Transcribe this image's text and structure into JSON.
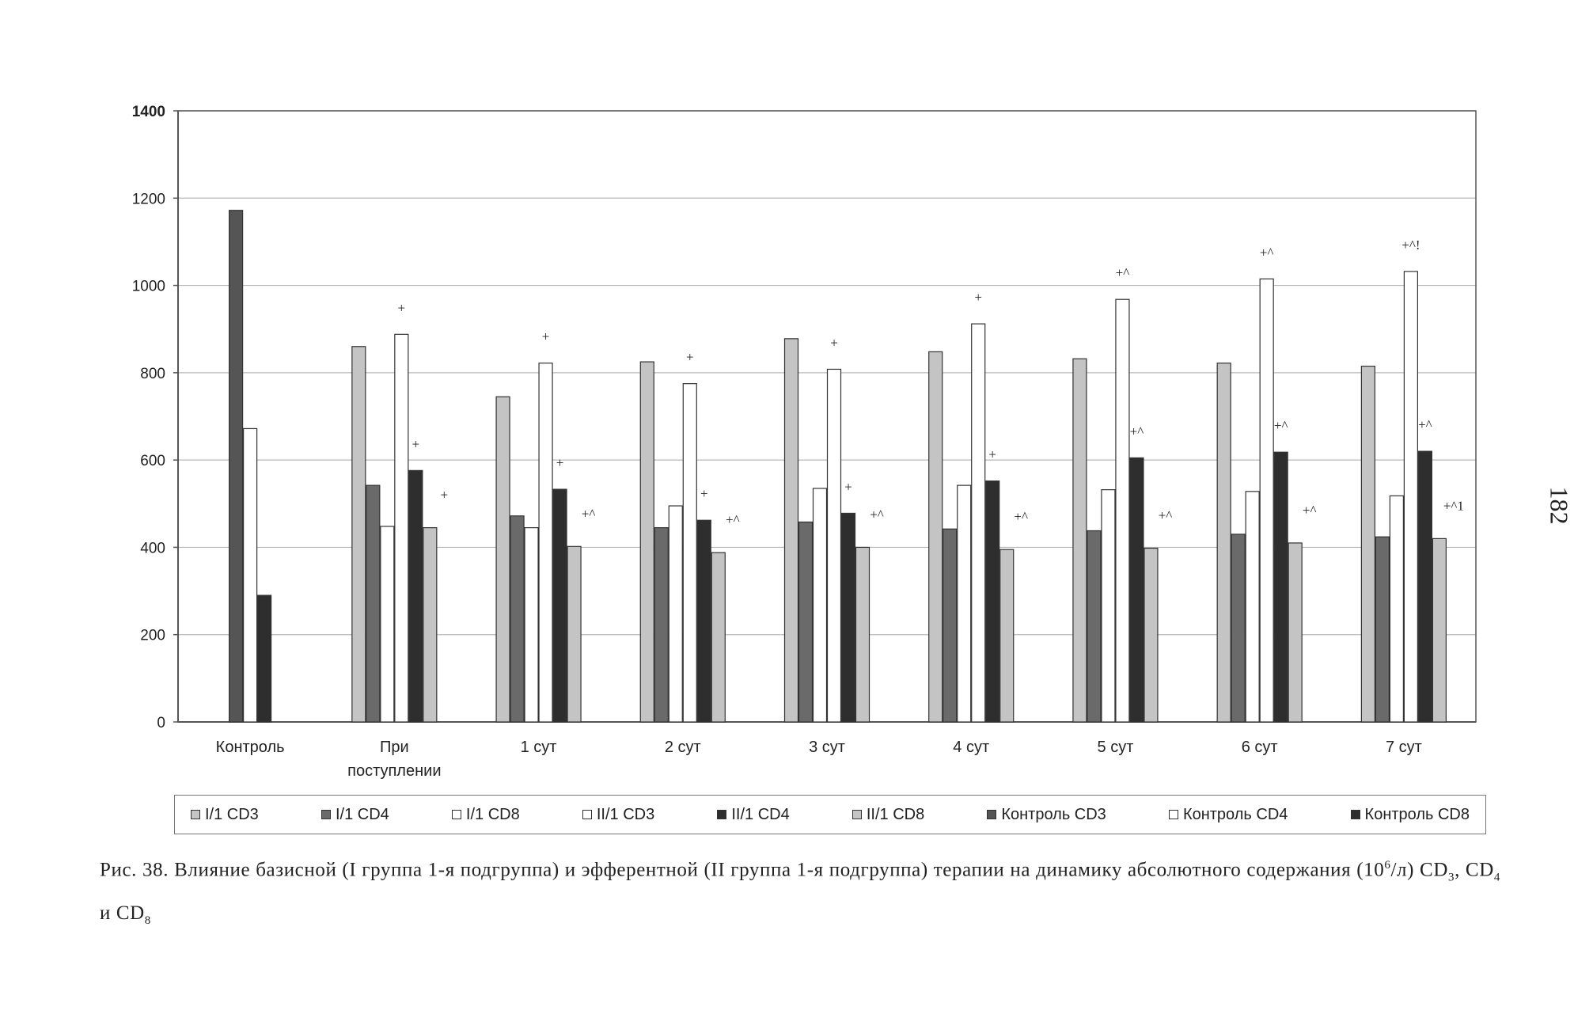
{
  "page_number": "182",
  "caption": {
    "figure_label": "Рис. 38.",
    "text": "Влияние базисной (I группа 1-я подгруппа) и эфферентной (II группа 1-я подгруппа) терапии на динамику абсолютного содержания (10",
    "superscript": "6",
    "text_after_sup": "/л) CD",
    "sub1": "3",
    "sep1": ", CD",
    "sub2": "4",
    "sep2": " и CD",
    "sub3": "8"
  },
  "colors": {
    "light_gray_bar": "#c4c4c4",
    "mid_gray_bar": "#6a6a6a",
    "white_bar": "#ffffff",
    "dark_bar": "#2e2e2e",
    "control_cd3_bar": "#555555",
    "gridline": "#b8b8b8",
    "axis": "#555555"
  },
  "chart_data": {
    "type": "bar",
    "title": "",
    "xlabel": "",
    "ylabel": "",
    "ylim": [
      0,
      1400
    ],
    "yticks": [
      0,
      200,
      400,
      600,
      800,
      1000,
      1200,
      1400
    ],
    "grid": true,
    "legend_position": "bottom",
    "categories": [
      "Контроль",
      "При поступлении",
      "1 сут",
      "2 сут",
      "3 сут",
      "4 сут",
      "5 сут",
      "6 сут",
      "7 сут"
    ],
    "category_lines": [
      [
        "Контроль"
      ],
      [
        "При",
        "поступлении"
      ],
      [
        "1 сут"
      ],
      [
        "2 сут"
      ],
      [
        "3 сут"
      ],
      [
        "4 сут"
      ],
      [
        "5 сут"
      ],
      [
        "6 сут"
      ],
      [
        "7 сут"
      ]
    ],
    "series": [
      {
        "name": "I/1 CD3",
        "color": "#c4c4c4",
        "values": [
          null,
          860,
          745,
          825,
          878,
          848,
          832,
          822,
          815
        ]
      },
      {
        "name": "I/1 CD4",
        "color": "#6a6a6a",
        "values": [
          null,
          542,
          472,
          445,
          458,
          442,
          438,
          430,
          424
        ]
      },
      {
        "name": "I/1 CD8",
        "color": "#ffffff",
        "values": [
          null,
          448,
          445,
          495,
          535,
          542,
          532,
          528,
          518
        ]
      },
      {
        "name": "II/1 CD3",
        "color": "#ffffff",
        "values": [
          null,
          888,
          822,
          775,
          808,
          912,
          968,
          1015,
          1032
        ]
      },
      {
        "name": "II/1 CD4",
        "color": "#2e2e2e",
        "values": [
          null,
          576,
          533,
          462,
          478,
          552,
          605,
          618,
          620
        ]
      },
      {
        "name": "II/1 CD8",
        "color": "#c4c4c4",
        "values": [
          null,
          445,
          402,
          388,
          400,
          395,
          398,
          410,
          420
        ]
      },
      {
        "name": "Контроль CD3",
        "color": "#555555",
        "values": [
          1172,
          null,
          null,
          null,
          null,
          null,
          null,
          null,
          null
        ]
      },
      {
        "name": "Контроль CD4",
        "color": "#ffffff",
        "values": [
          672,
          null,
          null,
          null,
          null,
          null,
          null,
          null,
          null
        ]
      },
      {
        "name": "Контроль CD8",
        "color": "#2e2e2e",
        "values": [
          290,
          null,
          null,
          null,
          null,
          null,
          null,
          null,
          null
        ]
      }
    ],
    "annotations": [
      {
        "category": "При поступлении",
        "series": "II/1 CD3",
        "text": "+"
      },
      {
        "category": "При поступлении",
        "series": "II/1 CD4",
        "text": "+"
      },
      {
        "category": "При поступлении",
        "series": "II/1 CD8",
        "text": "+"
      },
      {
        "category": "1 сут",
        "series": "II/1 CD3",
        "text": "+"
      },
      {
        "category": "1 сут",
        "series": "II/1 CD4",
        "text": "+"
      },
      {
        "category": "1 сут",
        "series": "II/1 CD8",
        "text": "+^"
      },
      {
        "category": "2 сут",
        "series": "II/1 CD3",
        "text": "+"
      },
      {
        "category": "2 сут",
        "series": "II/1 CD4",
        "text": "+"
      },
      {
        "category": "2 сут",
        "series": "II/1 CD8",
        "text": "+^"
      },
      {
        "category": "3 сут",
        "series": "II/1 CD3",
        "text": "+"
      },
      {
        "category": "3 сут",
        "series": "II/1 CD4",
        "text": "+"
      },
      {
        "category": "3 сут",
        "series": "II/1 CD8",
        "text": "+^"
      },
      {
        "category": "4 сут",
        "series": "II/1 CD3",
        "text": "+"
      },
      {
        "category": "4 сут",
        "series": "II/1 CD4",
        "text": "+"
      },
      {
        "category": "4 сут",
        "series": "II/1 CD8",
        "text": "+^"
      },
      {
        "category": "5 сут",
        "series": "II/1 CD3",
        "text": "+^"
      },
      {
        "category": "5 сут",
        "series": "II/1 CD4",
        "text": "+^"
      },
      {
        "category": "5 сут",
        "series": "II/1 CD8",
        "text": "+^"
      },
      {
        "category": "6 сут",
        "series": "II/1 CD3",
        "text": "+^"
      },
      {
        "category": "6 сут",
        "series": "II/1 CD4",
        "text": "+^"
      },
      {
        "category": "6 сут",
        "series": "II/1 CD8",
        "text": "+^"
      },
      {
        "category": "7 сут",
        "series": "II/1 CD3",
        "text": "+^!"
      },
      {
        "category": "7 сут",
        "series": "II/1 CD4",
        "text": "+^"
      },
      {
        "category": "7 сут",
        "series": "II/1 CD8",
        "text": "+^1"
      }
    ]
  }
}
